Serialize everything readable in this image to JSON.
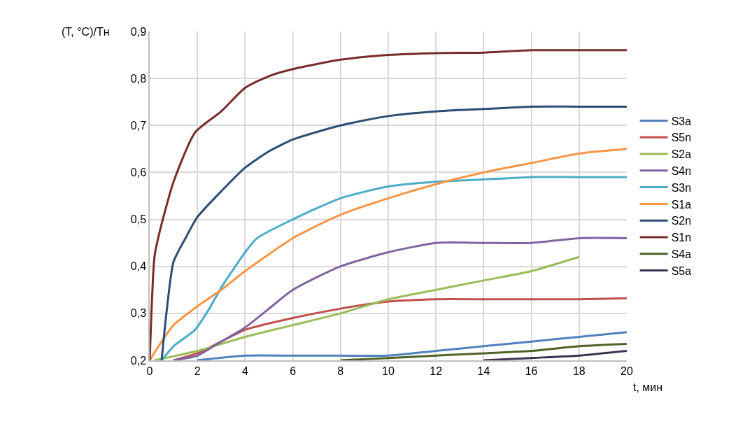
{
  "chart_data": {
    "type": "line",
    "xlabel": "t, мин",
    "ylabel": "(T, °C)/Tн",
    "xlim": [
      0,
      20
    ],
    "xticks": [
      0,
      2,
      4,
      6,
      8,
      10,
      12,
      14,
      16,
      18,
      20
    ],
    "ylim": [
      0.2,
      0.9
    ],
    "yticks": [
      {
        "value": 0.2,
        "label": "0,2"
      },
      {
        "value": 0.3,
        "label": "0,3"
      },
      {
        "value": 0.4,
        "label": "0,4"
      },
      {
        "value": 0.5,
        "label": "0,5"
      },
      {
        "value": 0.6,
        "label": "0,6"
      },
      {
        "value": 0.7,
        "label": "0,7"
      },
      {
        "value": 0.8,
        "label": "0,8"
      },
      {
        "value": 0.9,
        "label": "0,9"
      }
    ],
    "grid": true,
    "legend": "right",
    "marker": "none",
    "line_style": "solid",
    "series": [
      {
        "name": "S3a",
        "color": "#4f81bd",
        "x": [
          2,
          4,
          6,
          8,
          10,
          12,
          14,
          16,
          18,
          20
        ],
        "values": [
          0.2,
          0.21,
          0.21,
          0.21,
          0.21,
          0.22,
          0.23,
          0.24,
          0.25,
          0.26
        ]
      },
      {
        "name": "S5n",
        "color": "#c0504d",
        "x": [
          1,
          2,
          3,
          4,
          6,
          8,
          10,
          12,
          14,
          16,
          18,
          20
        ],
        "values": [
          0.2,
          0.215,
          0.24,
          0.265,
          0.29,
          0.31,
          0.325,
          0.33,
          0.33,
          0.33,
          0.33,
          0.332
        ]
      },
      {
        "name": "S2a",
        "color": "#9bbb59",
        "x": [
          0.2,
          2,
          4,
          6,
          8,
          10,
          12,
          14,
          16,
          18
        ],
        "values": [
          0.2,
          0.22,
          0.25,
          0.275,
          0.3,
          0.33,
          0.35,
          0.37,
          0.39,
          0.42
        ]
      },
      {
        "name": "S4n",
        "color": "#8064a2",
        "x": [
          1,
          2,
          3,
          4,
          5,
          6,
          8,
          10,
          12,
          14,
          16,
          18,
          20
        ],
        "values": [
          0.2,
          0.21,
          0.24,
          0.27,
          0.31,
          0.35,
          0.4,
          0.43,
          0.45,
          0.45,
          0.45,
          0.46,
          0.46
        ]
      },
      {
        "name": "S3n",
        "color": "#4bacc6",
        "x": [
          0.5,
          1,
          1.9,
          2.5,
          3,
          4,
          4.5,
          6,
          8,
          10,
          12,
          14,
          16,
          18,
          20
        ],
        "values": [
          0.2,
          0.23,
          0.265,
          0.31,
          0.355,
          0.43,
          0.46,
          0.5,
          0.545,
          0.57,
          0.58,
          0.585,
          0.59,
          0.59,
          0.59
        ]
      },
      {
        "name": "S1a",
        "color": "#f79646",
        "x": [
          0,
          0.5,
          1,
          2,
          3,
          4,
          6,
          8,
          10,
          12,
          14,
          16,
          18,
          20
        ],
        "values": [
          0.2,
          0.24,
          0.275,
          0.315,
          0.35,
          0.39,
          0.46,
          0.51,
          0.545,
          0.575,
          0.6,
          0.62,
          0.64,
          0.65
        ]
      },
      {
        "name": "S2n",
        "color": "#2c4d75",
        "x": [
          0.5,
          0.7,
          1,
          1.5,
          2,
          3,
          4,
          5,
          6,
          8,
          10,
          12,
          14,
          16,
          18,
          20
        ],
        "values": [
          0.2,
          0.3,
          0.41,
          0.46,
          0.505,
          0.56,
          0.61,
          0.645,
          0.67,
          0.7,
          0.72,
          0.73,
          0.735,
          0.74,
          0.74,
          0.74
        ]
      },
      {
        "name": "S1n",
        "color": "#772c2a",
        "x": [
          0,
          0.2,
          0.4,
          1,
          1.9,
          3,
          4,
          5,
          6,
          8,
          10,
          12,
          14,
          16,
          18,
          20
        ],
        "values": [
          0.2,
          0.42,
          0.47,
          0.58,
          0.685,
          0.73,
          0.78,
          0.805,
          0.82,
          0.84,
          0.85,
          0.854,
          0.855,
          0.86,
          0.86,
          0.86
        ]
      },
      {
        "name": "S4a",
        "color": "#4f6228",
        "x": [
          8,
          10,
          12,
          14,
          16,
          18,
          20
        ],
        "values": [
          0.2,
          0.205,
          0.21,
          0.215,
          0.22,
          0.23,
          0.235
        ]
      },
      {
        "name": "S5a",
        "color": "#3f3151",
        "x": [
          14,
          16,
          18,
          20
        ],
        "values": [
          0.2,
          0.205,
          0.21,
          0.22
        ]
      }
    ]
  }
}
